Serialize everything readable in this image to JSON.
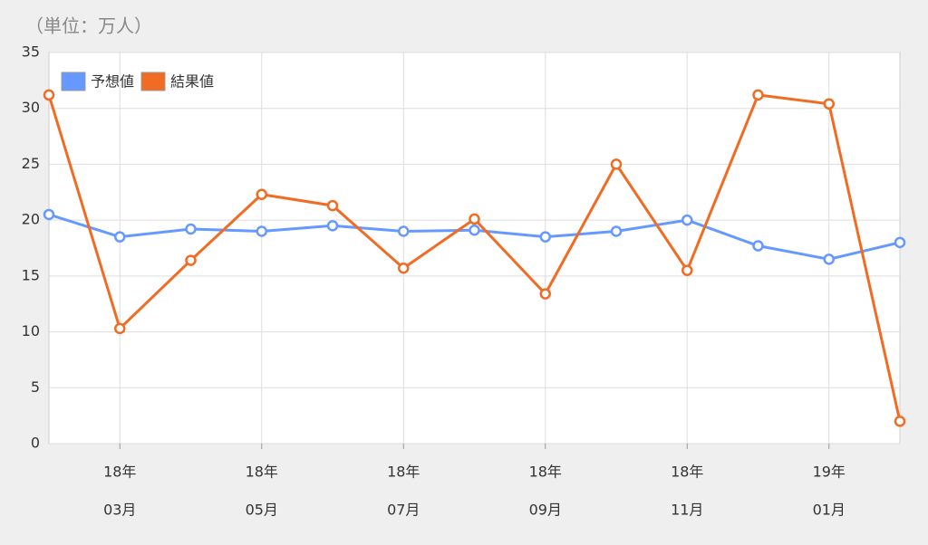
{
  "chart_data": {
    "type": "line",
    "unit_label": "（単位：万人）",
    "categories": [
      null,
      [
        "18年",
        "03月"
      ],
      null,
      [
        "18年",
        "05月"
      ],
      null,
      [
        "18年",
        "07月"
      ],
      null,
      [
        "18年",
        "09月"
      ],
      null,
      [
        "18年",
        "11月"
      ],
      null,
      [
        "19年",
        "01月"
      ],
      null
    ],
    "series": [
      {
        "name": "予想値",
        "color": "#6699ff",
        "values": [
          20.5,
          18.5,
          19.2,
          19,
          19.5,
          19,
          19.1,
          18.5,
          19,
          20,
          17.7,
          16.5,
          18
        ]
      },
      {
        "name": "結果値",
        "color": "#f26b22",
        "values": [
          31.2,
          10.3,
          16.4,
          22.3,
          21.3,
          15.7,
          20.1,
          13.4,
          25,
          15.5,
          31.2,
          30.4,
          2
        ]
      }
    ],
    "ylim": [
      0,
      35
    ],
    "yticks": [
      0,
      5,
      10,
      15,
      20,
      25,
      30,
      35
    ],
    "grid": true,
    "legend": "top-left"
  }
}
